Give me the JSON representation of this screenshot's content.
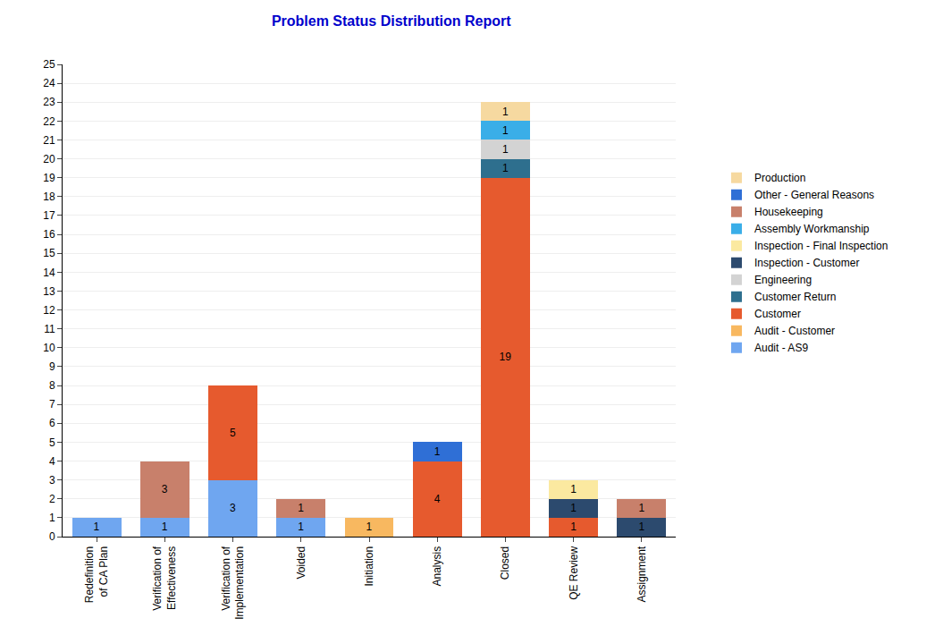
{
  "chart_data": {
    "type": "bar",
    "title": "Problem Status Distribution Report",
    "categories": [
      "Redefinition of CA Plan",
      "Verification of Effectiveness",
      "Verification of Implementation",
      "Voided",
      "Initiation",
      "Analysis",
      "Closed",
      "QE Review",
      "Assignment"
    ],
    "series": [
      {
        "name": "Audit - AS9",
        "color": "#6fa6f0",
        "values": [
          1,
          1,
          3,
          1,
          null,
          null,
          null,
          null,
          null
        ]
      },
      {
        "name": "Audit - Customer",
        "color": "#f8b860",
        "values": [
          null,
          null,
          null,
          null,
          1,
          null,
          null,
          null,
          null
        ]
      },
      {
        "name": "Customer",
        "color": "#e65a2e",
        "values": [
          null,
          null,
          5,
          null,
          null,
          4,
          19,
          1,
          null
        ]
      },
      {
        "name": "Customer Return",
        "color": "#2e6f8e",
        "values": [
          null,
          null,
          null,
          null,
          null,
          null,
          1,
          null,
          null
        ]
      },
      {
        "name": "Engineering",
        "color": "#d3d3d3",
        "values": [
          null,
          null,
          null,
          null,
          null,
          null,
          1,
          null,
          null
        ]
      },
      {
        "name": "Inspection - Customer",
        "color": "#2c4a6e",
        "values": [
          null,
          null,
          null,
          null,
          null,
          null,
          null,
          1,
          1
        ]
      },
      {
        "name": "Inspection - Final Inspection",
        "color": "#fbe9a0",
        "values": [
          null,
          null,
          null,
          null,
          null,
          null,
          null,
          1,
          null
        ]
      },
      {
        "name": "Assembly Workmanship",
        "color": "#3aaee8",
        "values": [
          null,
          null,
          null,
          null,
          null,
          null,
          1,
          null,
          null
        ]
      },
      {
        "name": "Housekeeping",
        "color": "#c8806b",
        "values": [
          null,
          3,
          null,
          1,
          null,
          null,
          null,
          null,
          1
        ]
      },
      {
        "name": "Other - General Reasons",
        "color": "#2f6fd6",
        "values": [
          null,
          null,
          null,
          null,
          null,
          1,
          null,
          null,
          null
        ]
      },
      {
        "name": "Production",
        "color": "#f6d9a0",
        "values": [
          null,
          null,
          null,
          null,
          null,
          null,
          1,
          null,
          null
        ]
      }
    ],
    "stacked": true,
    "data_labels": true,
    "ylim": [
      0,
      25
    ],
    "yticks": [
      0,
      1,
      2,
      3,
      4,
      5,
      6,
      7,
      8,
      9,
      10,
      11,
      12,
      13,
      14,
      15,
      16,
      17,
      18,
      19,
      20,
      21,
      22,
      23,
      24,
      25
    ],
    "grid": true,
    "legend": "right"
  }
}
